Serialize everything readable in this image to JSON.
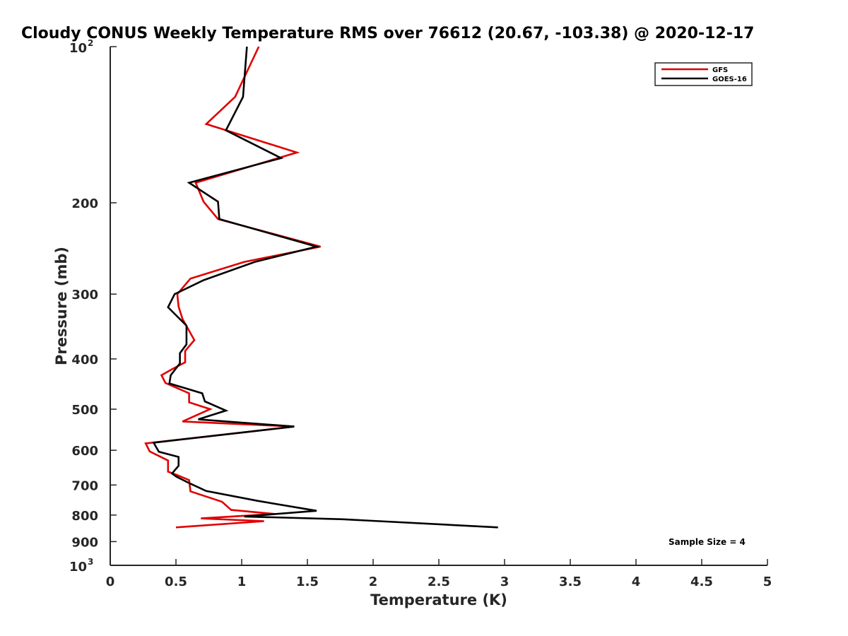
{
  "chart_data": {
    "type": "line",
    "title": "Cloudy CONUS Weekly Temperature RMS over 76612 (20.67, -103.38) @ 2020-12-17",
    "xlabel": "Temperature (K)",
    "ylabel": "Pressure (mb)",
    "xlim": [
      0,
      5
    ],
    "ylim": [
      100,
      1000
    ],
    "yscale": "log",
    "y_reversed": true,
    "xticks": [
      "0",
      "0.5",
      "1",
      "1.5",
      "2",
      "2.5",
      "3",
      "3.5",
      "4",
      "4.5",
      "5"
    ],
    "yticks": [
      {
        "value": 100,
        "base": "10",
        "exp": "2"
      },
      {
        "value": 200,
        "label": "200"
      },
      {
        "value": 300,
        "label": "300"
      },
      {
        "value": 400,
        "label": "400"
      },
      {
        "value": 500,
        "label": "500"
      },
      {
        "value": 600,
        "label": "600"
      },
      {
        "value": 700,
        "label": "700"
      },
      {
        "value": 800,
        "label": "800"
      },
      {
        "value": 900,
        "label": "900"
      },
      {
        "value": 1000,
        "base": "10",
        "exp": "3"
      }
    ],
    "legend": {
      "location": "top-right",
      "entries": [
        "GFS",
        "GOES-16"
      ]
    },
    "annotation": "Sample Size = 4",
    "series": [
      {
        "name": "GFS",
        "color": "#e00000",
        "points": [
          [
            1.13,
            100
          ],
          [
            0.95,
            125
          ],
          [
            0.73,
            141
          ],
          [
            1.42,
            160
          ],
          [
            0.65,
            183
          ],
          [
            0.71,
            199
          ],
          [
            0.82,
            215
          ],
          [
            1.6,
            243
          ],
          [
            1.02,
            260
          ],
          [
            0.61,
            280
          ],
          [
            0.51,
            300
          ],
          [
            0.52,
            317
          ],
          [
            0.55,
            335
          ],
          [
            0.64,
            368
          ],
          [
            0.57,
            386
          ],
          [
            0.57,
            406
          ],
          [
            0.46,
            420
          ],
          [
            0.39,
            430
          ],
          [
            0.42,
            445
          ],
          [
            0.6,
            466
          ],
          [
            0.6,
            485
          ],
          [
            0.76,
            500
          ],
          [
            0.55,
            528
          ],
          [
            1.4,
            540
          ],
          [
            0.27,
            582
          ],
          [
            0.3,
            603
          ],
          [
            0.44,
            628
          ],
          [
            0.44,
            660
          ],
          [
            0.51,
            670
          ],
          [
            0.6,
            685
          ],
          [
            0.61,
            720
          ],
          [
            0.85,
            754
          ],
          [
            0.92,
            782
          ],
          [
            1.25,
            796
          ],
          [
            0.69,
            812
          ],
          [
            1.17,
            822
          ],
          [
            0.5,
            845
          ]
        ]
      },
      {
        "name": "GOES-16",
        "color": "#000000",
        "points": [
          [
            1.04,
            100
          ],
          [
            1.01,
            125
          ],
          [
            0.88,
            145
          ],
          [
            1.3,
            164
          ],
          [
            0.6,
            183
          ],
          [
            0.82,
            199
          ],
          [
            0.83,
            215
          ],
          [
            1.57,
            243
          ],
          [
            1.1,
            260
          ],
          [
            0.71,
            282
          ],
          [
            0.49,
            300
          ],
          [
            0.44,
            318
          ],
          [
            0.58,
            345
          ],
          [
            0.58,
            375
          ],
          [
            0.53,
            390
          ],
          [
            0.53,
            408
          ],
          [
            0.46,
            430
          ],
          [
            0.45,
            446
          ],
          [
            0.7,
            466
          ],
          [
            0.72,
            483
          ],
          [
            0.88,
            503
          ],
          [
            0.67,
            523
          ],
          [
            1.4,
            540
          ],
          [
            0.33,
            580
          ],
          [
            0.37,
            604
          ],
          [
            0.52,
            618
          ],
          [
            0.52,
            643
          ],
          [
            0.47,
            665
          ],
          [
            0.5,
            674
          ],
          [
            0.6,
            694
          ],
          [
            0.73,
            719
          ],
          [
            1.12,
            751
          ],
          [
            1.57,
            785
          ],
          [
            1.02,
            805
          ],
          [
            1.77,
            815
          ],
          [
            2.95,
            845
          ]
        ]
      }
    ]
  }
}
